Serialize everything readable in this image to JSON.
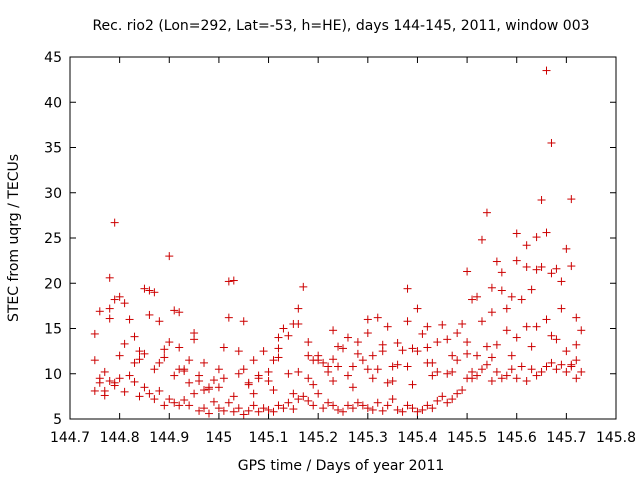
{
  "chart_data": {
    "type": "scatter",
    "title": "Rec. rio2 (Lon=292, Lat=-53, h=HE), days 144-145, 2011, window 003",
    "xlabel": "GPS time / Days of year 2011",
    "ylabel": "STEC from uqrg / TECUs",
    "xlim": [
      144.7,
      145.8
    ],
    "ylim": [
      5,
      45
    ],
    "xticks": [
      "144.7",
      "144.8",
      "144.9",
      "145",
      "145.1",
      "145.2",
      "145.3",
      "145.4",
      "145.5",
      "145.6",
      "145.7",
      "145.8"
    ],
    "yticks": [
      "5",
      "10",
      "15",
      "20",
      "25",
      "30",
      "35",
      "40",
      "45"
    ],
    "grid": false,
    "legend": "none",
    "marker": "plus",
    "color": "#cc0000",
    "series": [
      {
        "x": [
          144.75,
          144.75,
          144.76,
          144.77,
          144.78,
          144.78,
          144.79,
          144.8,
          144.81,
          144.82,
          144.83,
          144.84,
          144.85,
          144.86,
          144.87,
          144.88,
          144.89,
          144.9,
          144.91,
          144.92,
          144.93,
          144.94,
          144.95,
          144.96,
          144.97,
          144.98,
          144.99,
          145.0,
          145.01,
          145.02,
          145.03,
          145.04,
          145.05,
          145.06,
          145.07,
          145.08,
          145.09,
          145.1,
          145.11,
          145.12,
          145.13,
          145.14,
          145.15,
          145.16,
          145.17,
          145.18,
          145.19,
          145.2,
          145.21,
          145.22,
          145.23,
          145.24,
          145.25,
          145.26,
          145.27,
          145.28,
          145.29,
          145.3,
          145.31,
          145.32,
          145.33,
          145.34,
          145.35,
          145.36,
          145.37,
          145.38,
          145.39,
          145.4,
          145.41,
          145.42,
          145.43,
          145.44,
          145.45,
          145.46,
          145.47,
          145.48,
          145.49,
          145.5,
          145.51,
          145.52,
          145.53,
          145.54,
          145.55,
          145.56,
          145.57,
          145.58,
          145.59,
          145.6,
          145.61,
          145.62,
          145.63,
          145.64,
          145.65,
          145.66,
          145.67,
          145.68,
          145.69,
          145.7,
          145.71,
          145.72,
          145.73,
          144.75,
          144.76,
          144.77,
          144.78,
          144.79,
          144.8,
          144.81,
          144.82,
          144.83,
          144.84,
          144.85,
          144.86,
          144.87,
          144.88,
          144.89,
          144.9,
          144.91,
          144.92,
          144.93,
          144.94,
          144.95,
          144.96,
          144.97,
          144.98,
          144.99,
          145.0,
          145.01,
          145.02,
          145.03,
          145.04,
          145.05,
          145.06,
          145.07,
          145.08,
          145.09,
          145.1,
          145.11,
          145.12,
          145.13,
          145.14,
          145.15,
          145.16,
          145.17,
          145.18,
          145.19,
          145.2,
          145.21,
          145.22,
          145.23,
          145.24,
          145.25,
          145.26,
          145.27,
          145.28,
          145.29,
          145.3,
          145.31,
          145.32,
          145.33,
          145.34,
          145.35,
          145.36,
          145.37,
          145.38,
          145.39,
          145.4,
          145.41,
          145.42,
          145.43,
          145.44,
          145.45,
          145.46,
          145.47,
          145.48,
          145.49,
          145.5,
          145.51,
          145.52,
          145.53,
          145.54,
          145.55,
          145.56,
          145.57,
          145.58,
          145.59,
          145.6,
          145.61,
          145.62,
          145.63,
          145.64,
          145.65,
          145.66,
          145.67,
          145.68,
          145.69,
          145.7,
          145.71,
          145.72,
          145.73,
          144.79,
          144.78,
          144.81,
          144.86,
          144.9,
          144.92,
          144.95,
          145.02,
          145.05,
          145.12,
          145.16,
          145.18,
          145.23,
          145.3,
          145.33,
          145.38,
          145.42,
          145.5,
          145.53,
          145.55,
          145.57,
          145.6,
          145.62,
          145.64,
          145.65,
          145.66,
          145.67,
          145.69,
          145.71,
          145.72,
          144.76,
          144.8,
          144.84,
          144.88,
          144.92,
          144.96,
          145.0,
          145.04,
          145.08,
          145.12,
          145.16,
          145.2,
          145.24,
          145.28,
          145.32,
          145.36,
          145.4,
          145.44,
          145.48,
          145.52,
          145.56,
          145.6,
          145.64,
          145.68,
          145.72,
          144.77,
          144.83,
          144.87,
          144.91,
          144.94,
          144.97,
          145.01,
          145.06,
          145.1,
          145.14,
          145.18,
          145.22,
          145.26,
          145.3,
          145.34,
          145.38,
          145.42,
          145.46,
          145.5,
          145.54,
          145.58,
          145.62,
          145.66,
          145.7,
          144.79,
          144.85,
          144.89,
          144.93,
          144.98,
          145.03,
          145.07,
          145.11,
          145.15,
          145.19,
          145.23,
          145.27,
          145.31,
          145.35,
          145.39,
          145.43,
          145.47,
          145.51,
          145.55,
          145.59,
          145.63,
          145.67,
          145.71
        ],
        "y": [
          14.4,
          11.5,
          16.9,
          8.1,
          20.6,
          16.1,
          26.7,
          18.5,
          13.3,
          16.0,
          14.1,
          11.6,
          19.4,
          16.5,
          19.0,
          15.8,
          12.7,
          13.5,
          17.0,
          12.9,
          10.3,
          11.5,
          14.5,
          9.8,
          11.2,
          8.3,
          9.3,
          10.5,
          12.9,
          16.2,
          20.3,
          12.5,
          10.5,
          9.0,
          11.5,
          9.8,
          12.5,
          10.2,
          11.5,
          12.8,
          15.0,
          14.2,
          15.5,
          17.2,
          19.6,
          12.0,
          11.5,
          12.0,
          11.2,
          10.8,
          11.6,
          13.0,
          12.8,
          14.0,
          10.8,
          13.5,
          11.5,
          14.5,
          12.0,
          16.2,
          12.5,
          15.2,
          10.8,
          13.4,
          12.6,
          15.8,
          12.8,
          17.2,
          14.4,
          12.9,
          11.2,
          13.5,
          15.4,
          13.8,
          12.0,
          14.5,
          15.5,
          21.3,
          18.2,
          18.5,
          24.8,
          27.8,
          19.5,
          22.4,
          21.2,
          17.2,
          18.5,
          25.5,
          18.2,
          21.8,
          19.3,
          25.1,
          21.8,
          25.6,
          21.1,
          21.6,
          17.2,
          23.8,
          21.9,
          16.2,
          14.8,
          8.1,
          9.0,
          7.6,
          9.2,
          8.7,
          9.5,
          8.0,
          9.8,
          9.1,
          7.5,
          8.5,
          7.8,
          7.2,
          8.1,
          6.5,
          7.2,
          6.8,
          6.5,
          7.1,
          6.5,
          7.8,
          5.9,
          6.2,
          5.6,
          6.9,
          6.2,
          5.9,
          6.8,
          5.8,
          6.2,
          5.5,
          5.9,
          6.5,
          5.8,
          6.2,
          6.0,
          5.8,
          6.5,
          6.2,
          6.8,
          6.1,
          7.2,
          7.5,
          7.0,
          6.5,
          7.8,
          6.2,
          6.8,
          6.5,
          6.0,
          5.8,
          6.5,
          6.2,
          6.8,
          6.5,
          6.2,
          6.0,
          6.8,
          5.9,
          6.5,
          7.2,
          6.0,
          5.8,
          6.5,
          6.2,
          5.8,
          6.0,
          6.5,
          6.2,
          7.0,
          7.5,
          6.8,
          7.2,
          7.8,
          8.2,
          9.5,
          10.2,
          9.8,
          10.5,
          11.0,
          9.2,
          10.2,
          9.5,
          9.8,
          10.5,
          9.5,
          10.8,
          9.2,
          10.5,
          9.8,
          10.2,
          10.8,
          11.2,
          10.5,
          11.0,
          10.2,
          10.8,
          9.5,
          10.2,
          18.2,
          17.2,
          17.8,
          19.2,
          23.0,
          16.8,
          13.8,
          20.2,
          15.8,
          14.0,
          15.5,
          13.5,
          14.8,
          16.0,
          13.2,
          19.4,
          15.2,
          13.5,
          15.8,
          16.8,
          19.2,
          22.5,
          24.2,
          21.5,
          29.2,
          43.5,
          35.5,
          20.2,
          29.3,
          13.2,
          9.5,
          12.0,
          12.5,
          11.2,
          10.5,
          9.2,
          8.5,
          10.0,
          9.5,
          11.8,
          10.2,
          11.5,
          10.8,
          12.2,
          10.5,
          11.0,
          12.5,
          10.2,
          11.5,
          12.0,
          13.2,
          14.0,
          15.2,
          13.8,
          11.5,
          10.2,
          11.2,
          10.5,
          9.8,
          9.0,
          8.2,
          9.5,
          8.8,
          9.2,
          10.0,
          9.5,
          10.2,
          9.8,
          10.5,
          9.0,
          10.8,
          11.2,
          10.0,
          12.2,
          13.0,
          14.8,
          15.2,
          16.0,
          12.5,
          9.0,
          12.2,
          11.8,
          10.5,
          8.5,
          7.5,
          7.8,
          8.2,
          7.8,
          8.8,
          9.2,
          8.5,
          9.5,
          9.2,
          8.8,
          9.8,
          10.2,
          9.5,
          11.8,
          12.0,
          13.0,
          14.2,
          11.0
        ]
      }
    ]
  }
}
